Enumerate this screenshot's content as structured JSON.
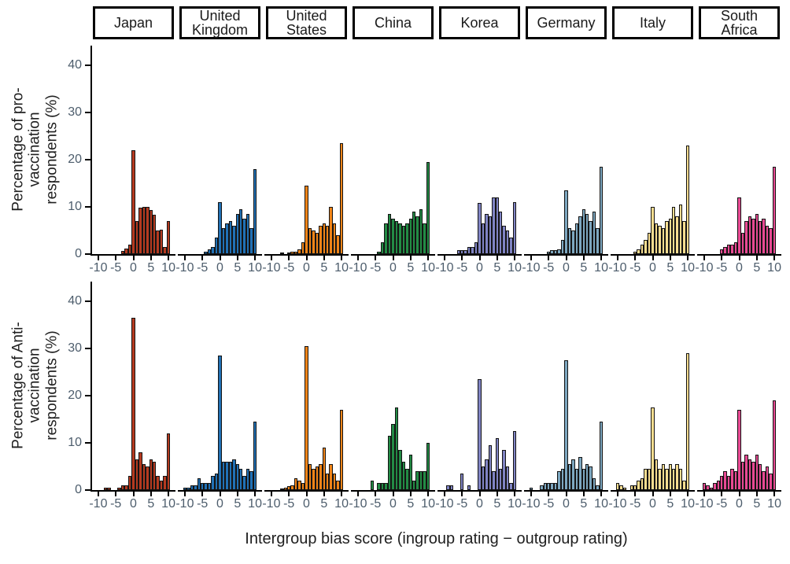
{
  "figure": {
    "caption": "Intergroup bias score (ingroup rating − outgroup rating)",
    "ylabel_pro": "Percentage of pro-\nvaccination\nrespondents (%)",
    "ylabel_anti": "Percentage of Anti-\nvaccination\nrespondents (%)"
  },
  "chart_data": {
    "type": "bar",
    "subtype": "faceted-histogram",
    "title": "",
    "xlabel": "Intergroup bias score (ingroup rating − outgroup rating)",
    "ylabels": [
      "Percentage of pro-vaccination respondents (%)",
      "Percentage of Anti-vaccination respondents (%)"
    ],
    "x_ticks": [
      -10,
      -5,
      0,
      5,
      10
    ],
    "y_ticks": [
      0,
      10,
      20,
      30,
      40
    ],
    "ylim": [
      0,
      42
    ],
    "xlim": [
      -11.55,
      11.55
    ],
    "bin_width": 1,
    "bins": [
      -10,
      -9,
      -8,
      -7,
      -6,
      -5,
      -4,
      -3,
      -2,
      -1,
      0,
      1,
      2,
      3,
      4,
      5,
      6,
      7,
      8,
      9,
      10
    ],
    "grid": false,
    "legend": "none",
    "facets": [
      {
        "label": "Japan",
        "color": "#b43a20"
      },
      {
        "label": "United\nKingdom",
        "color": "#2171b5"
      },
      {
        "label": "United\nStates",
        "color": "#f08418"
      },
      {
        "label": "China",
        "color": "#238b45"
      },
      {
        "label": "Korea",
        "color": "#8084c4"
      },
      {
        "label": "Germany",
        "color": "#7da7c0"
      },
      {
        "label": "Italy",
        "color": "#f7dd90"
      },
      {
        "label": "South\nAfrica",
        "color": "#e84a93"
      }
    ],
    "rows": [
      {
        "id": "pro",
        "ylabel": "Percentage of pro-vaccination respondents (%)",
        "series": [
          {
            "facet": "Japan",
            "values": [
              0,
              0,
              0,
              0,
              0,
              0,
              0,
              0.6,
              1.2,
              2,
              22,
              7,
              9.8,
              10,
              10,
              9.3,
              8.4,
              5,
              5.2,
              1.5,
              7
            ]
          },
          {
            "facet": "United Kingdom",
            "values": [
              0,
              0,
              0,
              0,
              0,
              0,
              0.5,
              1,
              1.5,
              3.5,
              11,
              5.5,
              6.5,
              7,
              6,
              8.5,
              9.5,
              7.5,
              8.5,
              5.5,
              18
            ]
          },
          {
            "facet": "United States",
            "values": [
              0,
              0,
              0,
              0.3,
              0,
              0.3,
              0.5,
              0.5,
              1,
              2.5,
              14.5,
              5.5,
              5,
              4.5,
              6,
              6.5,
              6,
              10,
              6.5,
              4,
              23.5
            ]
          },
          {
            "facet": "China",
            "values": [
              0,
              0,
              0,
              0,
              0,
              0,
              0.5,
              2.5,
              6.5,
              8.5,
              7.5,
              7,
              6.5,
              6,
              6.5,
              7.5,
              9,
              8,
              9.5,
              6.5,
              19.5
            ]
          },
          {
            "facet": "Korea",
            "values": [
              0,
              0,
              0,
              0,
              0.8,
              0.8,
              0.8,
              1.5,
              1.5,
              2.5,
              10.8,
              6.5,
              8.5,
              8,
              12,
              12,
              9,
              6,
              5,
              3.5,
              11
            ]
          },
          {
            "facet": "Germany",
            "values": [
              0,
              0,
              0,
              0,
              0,
              0.5,
              0.8,
              0.8,
              1,
              3,
              13.5,
              5.5,
              5,
              6.5,
              8,
              9.5,
              8.5,
              7,
              9,
              5.5,
              18.5
            ]
          },
          {
            "facet": "Italy",
            "values": [
              0,
              0,
              0,
              0,
              0,
              0.5,
              1,
              2,
              3,
              4.5,
              10,
              6.5,
              6,
              5.5,
              7,
              7.5,
              10,
              8,
              10.5,
              7,
              23
            ]
          },
          {
            "facet": "South Africa",
            "values": [
              0,
              0,
              0,
              0,
              0,
              1,
              1.5,
              2,
              2,
              2.5,
              12,
              4.5,
              7,
              8,
              7.5,
              8.5,
              7,
              7.5,
              6,
              5.5,
              18.5
            ]
          }
        ]
      },
      {
        "id": "anti",
        "ylabel": "Percentage of Anti-vaccination respondents (%)",
        "series": [
          {
            "facet": "Japan",
            "values": [
              0,
              0,
              0.5,
              0.5,
              0,
              0,
              0.5,
              1,
              1,
              3,
              36.5,
              6.5,
              8,
              5.5,
              5,
              6.5,
              6,
              3,
              2,
              3,
              12
            ]
          },
          {
            "facet": "United Kingdom",
            "values": [
              0.5,
              0.5,
              1,
              1,
              2.5,
              1.5,
              1.5,
              1.5,
              3,
              3.5,
              28.5,
              6,
              6,
              6,
              6.5,
              5.5,
              4.5,
              3,
              4.5,
              4,
              14.5
            ]
          },
          {
            "facet": "United States",
            "values": [
              0,
              0,
              0,
              0.3,
              0.5,
              0.8,
              1,
              2.5,
              2,
              1.5,
              30.5,
              5.5,
              4.5,
              5,
              5.5,
              9,
              3.5,
              5.5,
              3.5,
              2,
              17
            ]
          },
          {
            "facet": "China",
            "values": [
              0,
              0,
              0,
              0,
              2,
              0,
              1.5,
              1.5,
              1.5,
              11.5,
              14,
              17.5,
              8.5,
              6,
              4.5,
              7.5,
              2,
              4,
              4,
              4,
              10
            ]
          },
          {
            "facet": "Korea",
            "values": [
              0,
              1,
              1,
              0,
              0,
              3.5,
              0,
              1,
              0,
              0,
              23.5,
              5,
              6.5,
              9.5,
              4,
              11,
              4.5,
              8.5,
              5,
              1.5,
              12.5
            ]
          },
          {
            "facet": "Germany",
            "values": [
              0.5,
              0,
              0,
              1,
              1.5,
              1.5,
              1.5,
              1.5,
              4,
              4.5,
              27.5,
              5.5,
              6.5,
              4.5,
              7,
              4.5,
              5.5,
              5,
              2.5,
              1,
              14.5
            ]
          },
          {
            "facet": "Italy",
            "values": [
              1.5,
              1,
              0.5,
              0,
              1,
              1,
              2,
              2.5,
              4.5,
              4.5,
              17.5,
              6.5,
              4.5,
              5.5,
              4.5,
              5.5,
              4.5,
              5.5,
              4.5,
              2,
              29
            ]
          },
          {
            "facet": "South Africa",
            "values": [
              1.5,
              1,
              0.5,
              1.5,
              2,
              3,
              4,
              3,
              4.5,
              4,
              17,
              6,
              7.5,
              6.5,
              6,
              7.5,
              5.5,
              4,
              5,
              3.5,
              19
            ]
          }
        ]
      }
    ]
  }
}
